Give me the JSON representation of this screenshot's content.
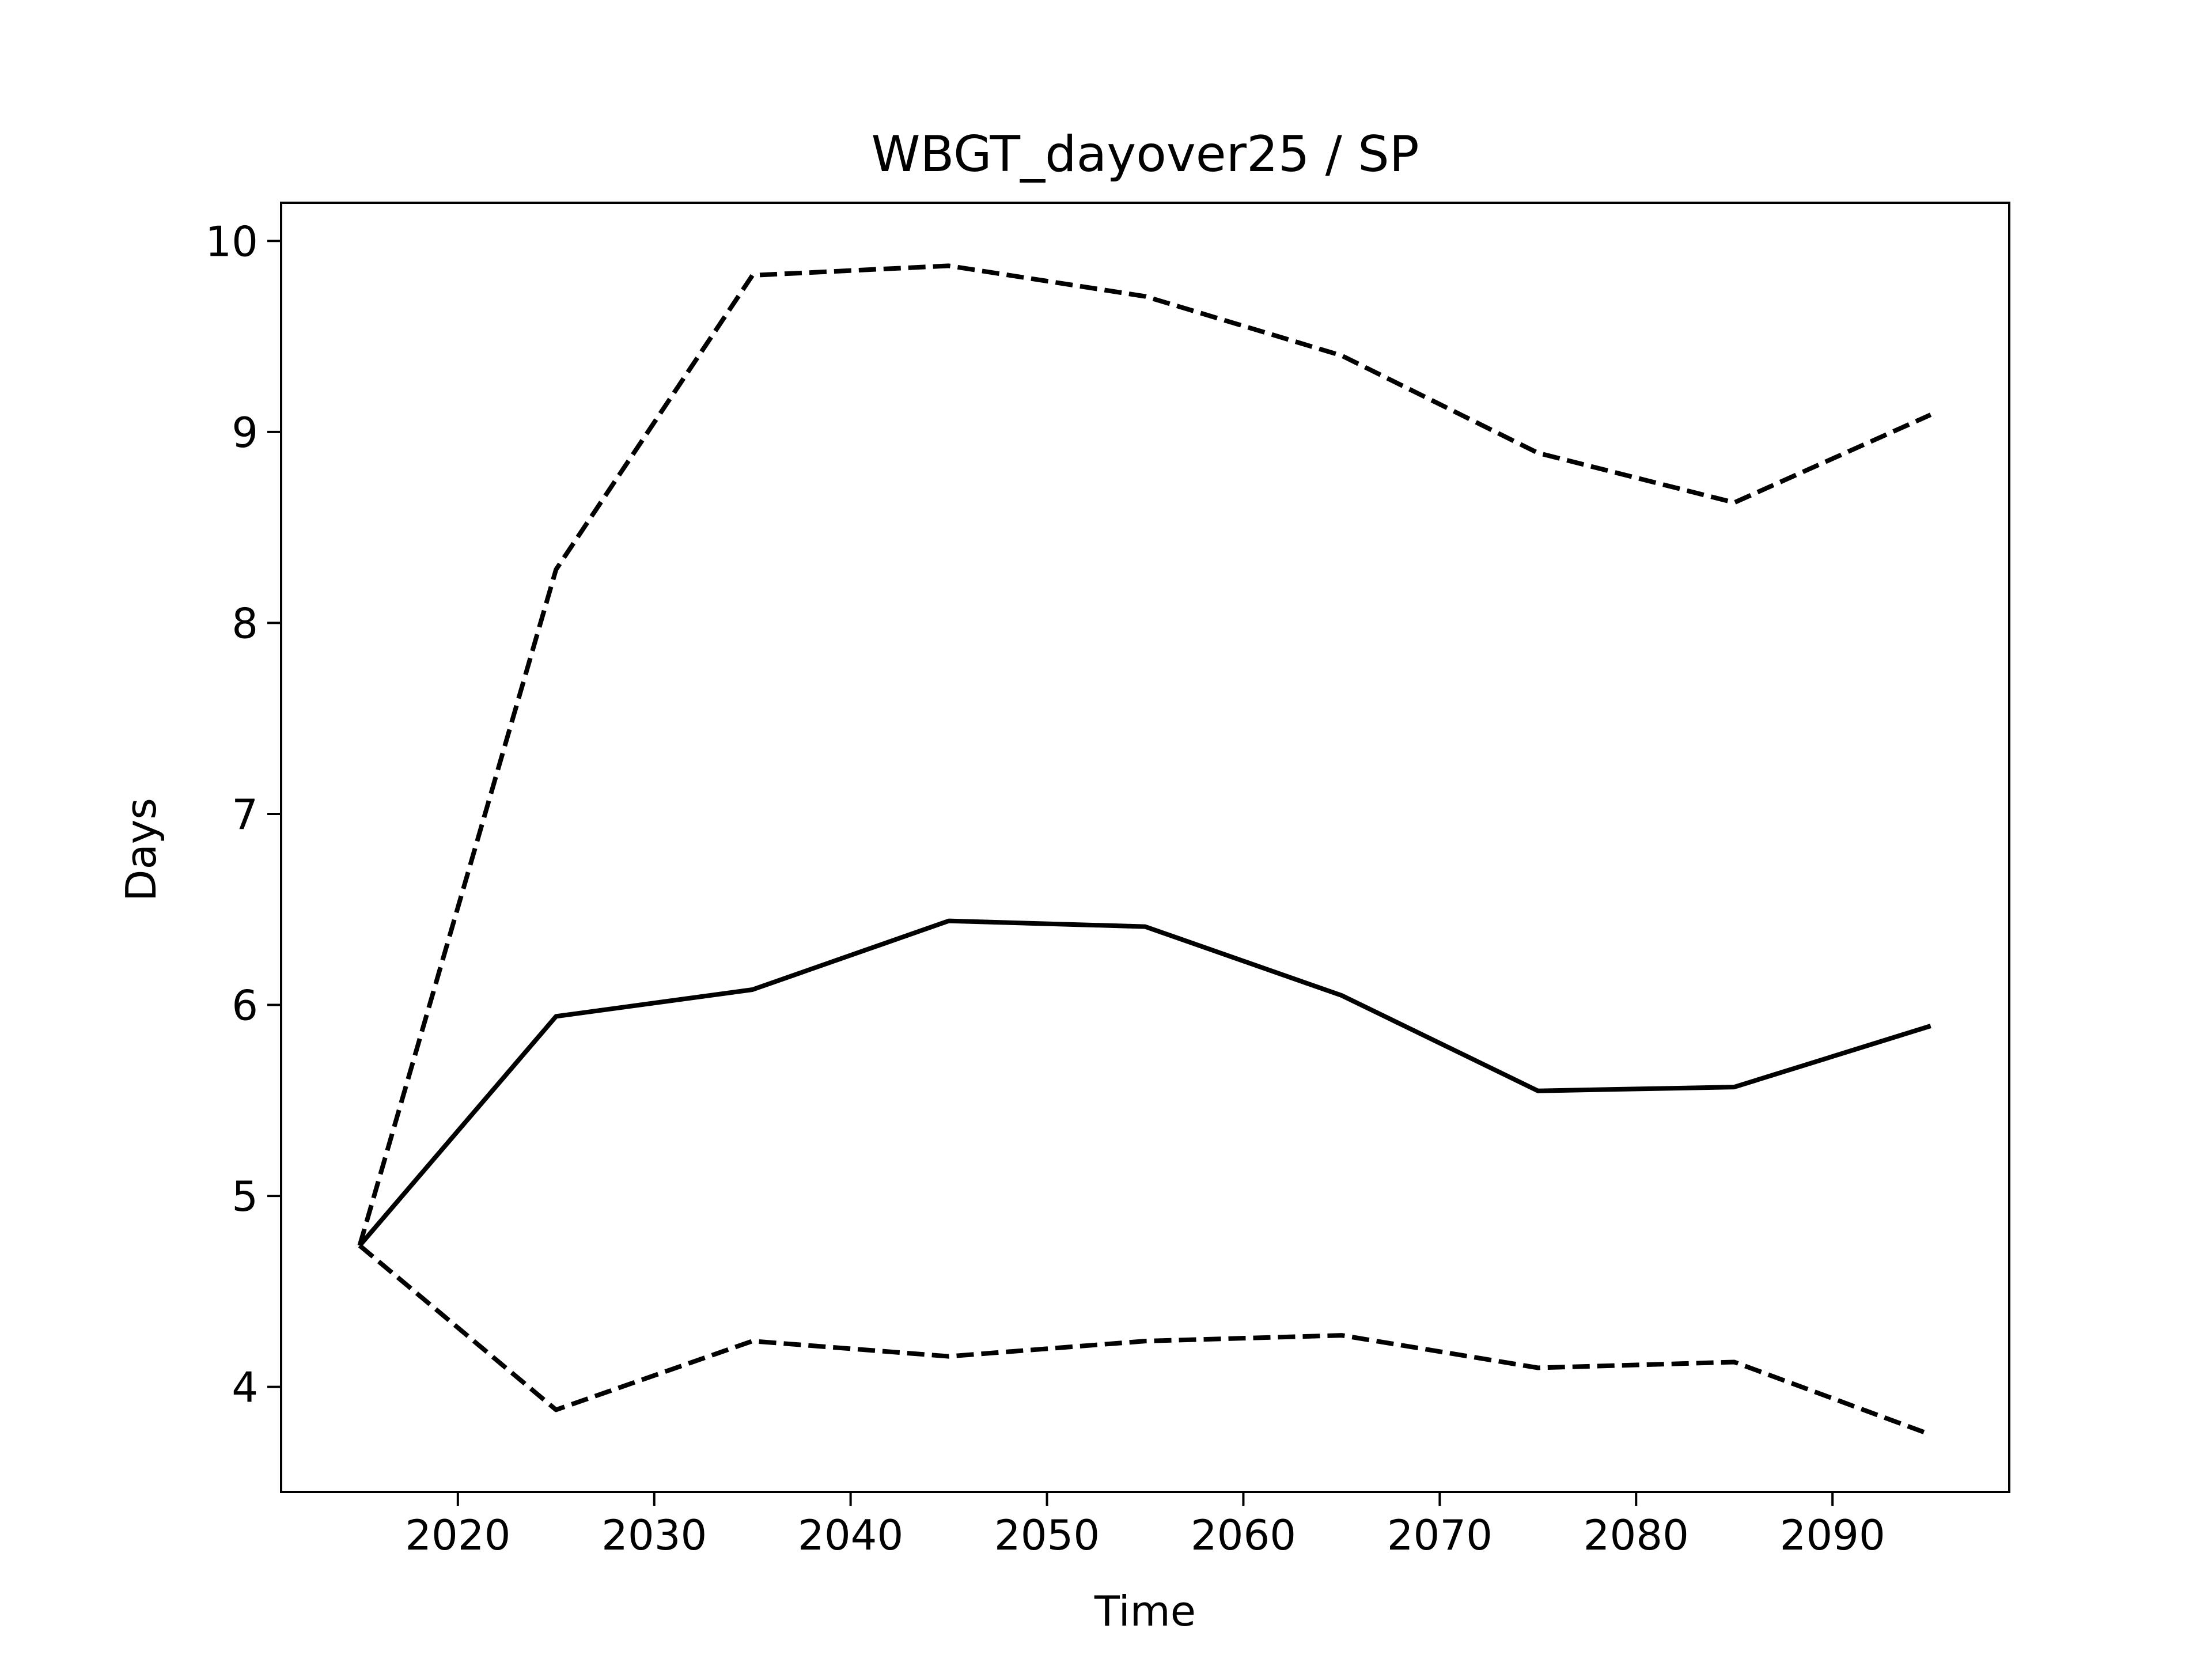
{
  "chart_data": {
    "type": "line",
    "title": "WBGT_dayover25 / SP",
    "xlabel": "Time",
    "ylabel": "Days",
    "x": [
      2015,
      2025,
      2035,
      2045,
      2055,
      2065,
      2075,
      2085,
      2095
    ],
    "xlim": [
      2011,
      2099
    ],
    "ylim": [
      3.45,
      10.2
    ],
    "xticks": [
      2020,
      2030,
      2040,
      2050,
      2060,
      2070,
      2080,
      2090
    ],
    "yticks": [
      4,
      5,
      6,
      7,
      8,
      9,
      10
    ],
    "grid": false,
    "series": [
      {
        "style": "solid",
        "color": "#000000",
        "values": [
          4.74,
          5.94,
          6.08,
          6.44,
          6.41,
          6.05,
          5.55,
          5.57,
          5.89
        ]
      },
      {
        "style": "dashed",
        "color": "#000000",
        "values": [
          4.74,
          8.28,
          9.82,
          9.87,
          9.71,
          9.4,
          8.89,
          8.63,
          9.09
        ]
      },
      {
        "style": "dashed",
        "color": "#000000",
        "values": [
          4.74,
          3.88,
          4.24,
          4.16,
          4.24,
          4.27,
          4.1,
          4.13,
          3.75
        ]
      }
    ]
  }
}
